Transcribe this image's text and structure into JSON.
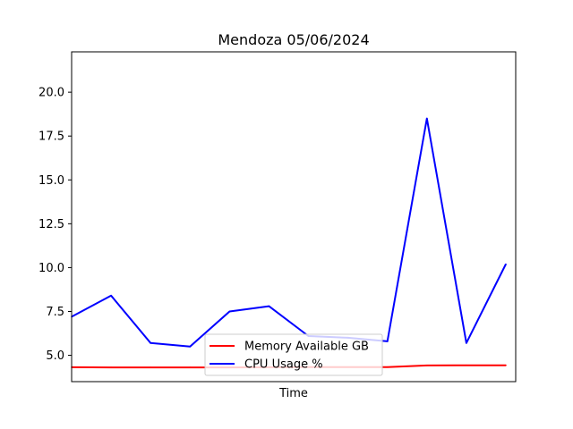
{
  "chart_data": {
    "type": "line",
    "title": "Mendoza 05/06/2024",
    "xlabel": "Time",
    "ylabel": "",
    "x": [
      0,
      1,
      2,
      3,
      4,
      5,
      6,
      7,
      8,
      9,
      10,
      11
    ],
    "xlim": [
      0,
      11.25
    ],
    "ylim": [
      3.5,
      22.3
    ],
    "yticks": [
      "5.0",
      "7.5",
      "10.0",
      "12.5",
      "15.0",
      "17.5",
      "20.0"
    ],
    "grid": false,
    "legend_position": "lower center",
    "series": [
      {
        "name": "Memory Available GB",
        "color": "#ff0000",
        "values": [
          4.32,
          4.31,
          4.31,
          4.31,
          4.31,
          4.32,
          4.33,
          4.33,
          4.33,
          4.42,
          4.43,
          4.43
        ]
      },
      {
        "name": "CPU Usage %",
        "color": "#0000ff",
        "values": [
          7.2,
          8.4,
          5.7,
          5.5,
          7.5,
          7.8,
          6.1,
          6.0,
          5.8,
          18.5,
          5.7,
          10.2
        ]
      }
    ]
  }
}
